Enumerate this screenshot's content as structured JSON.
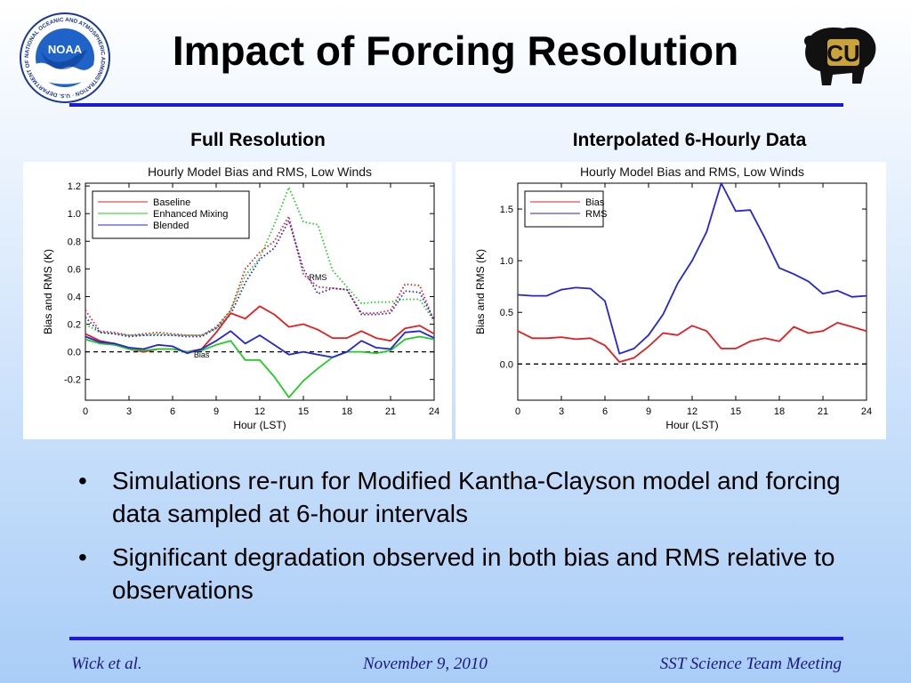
{
  "slide": {
    "title": "Impact of Forcing Resolution",
    "left_heading": "Full Resolution",
    "right_heading": "Interpolated 6-Hourly Data",
    "bullets": [
      "Simulations re-run for Modified Kantha-Clayson model and forcing data sampled at 6-hour intervals",
      "Significant degradation observed in both bias and RMS relative to observations"
    ],
    "bullet_symbol": "•",
    "footer": {
      "left": "Wick et al.",
      "center": "November 9, 2010",
      "right": "SST Science Team Meeting"
    },
    "logos": {
      "noaa": {
        "text": "NOAA",
        "ring_text": "NATIONAL OCEANIC AND ATMOSPHERIC ADMINISTRATION · U.S. DEPARTMENT OF COMMERCE ·"
      },
      "cu": {
        "icon": "cu-buffalo-logo",
        "text": "CU"
      }
    },
    "colors": {
      "rule": "#1a1ad8",
      "footer_text": "#1a1a80"
    }
  },
  "chart_data": [
    {
      "type": "line",
      "title": "Hourly Model Bias and RMS, Low Winds",
      "xlabel": "Hour (LST)",
      "ylabel": "Bias and RMS (K)",
      "xlim": [
        0,
        24
      ],
      "ylim": [
        -0.35,
        1.22
      ],
      "xticks": [
        0,
        3,
        6,
        9,
        12,
        15,
        18,
        21,
        24
      ],
      "yticks": [
        -0.2,
        0.0,
        0.2,
        0.4,
        0.6,
        0.8,
        1.0,
        1.2
      ],
      "ytick_labels": [
        "-0.2",
        "0.0",
        "0.2",
        "0.4",
        "0.6",
        "0.8",
        "1.0",
        "1.2"
      ],
      "legend": {
        "position": "top-left",
        "entries": [
          "Baseline",
          "Enhanced Mixing",
          "Blended"
        ]
      },
      "annotations": [
        {
          "text": "RMS",
          "x": 16.0,
          "y": 0.52
        },
        {
          "text": "Bias",
          "x": 8.0,
          "y": -0.04
        }
      ],
      "reference_line": {
        "y": 0.0,
        "style": "dashed"
      },
      "x": [
        0,
        1,
        2,
        3,
        4,
        5,
        6,
        7,
        8,
        9,
        10,
        11,
        12,
        13,
        14,
        15,
        16,
        17,
        18,
        19,
        20,
        21,
        22,
        23,
        24
      ],
      "series": [
        {
          "name": "Baseline",
          "metric": "RMS",
          "color": "#e02020",
          "style": "dotted",
          "values": [
            0.3,
            0.15,
            0.14,
            0.12,
            0.13,
            0.14,
            0.13,
            0.12,
            0.12,
            0.18,
            0.3,
            0.6,
            0.72,
            0.8,
            0.98,
            0.56,
            0.47,
            0.46,
            0.45,
            0.28,
            0.28,
            0.3,
            0.49,
            0.48,
            0.22
          ]
        },
        {
          "name": "Enhanced Mixing",
          "metric": "RMS",
          "color": "#22cc22",
          "style": "dotted",
          "values": [
            0.2,
            0.14,
            0.13,
            0.12,
            0.12,
            0.13,
            0.12,
            0.12,
            0.12,
            0.17,
            0.3,
            0.55,
            0.68,
            0.92,
            1.19,
            0.94,
            0.92,
            0.59,
            0.47,
            0.35,
            0.36,
            0.36,
            0.38,
            0.38,
            0.22
          ]
        },
        {
          "name": "Blended",
          "metric": "RMS",
          "color": "#2424d8",
          "style": "dotted",
          "values": [
            0.25,
            0.14,
            0.13,
            0.11,
            0.12,
            0.12,
            0.12,
            0.11,
            0.11,
            0.17,
            0.27,
            0.5,
            0.67,
            0.75,
            0.95,
            0.6,
            0.42,
            0.46,
            0.45,
            0.27,
            0.27,
            0.28,
            0.44,
            0.43,
            0.23
          ]
        },
        {
          "name": "Baseline",
          "metric": "Bias",
          "color": "#e02020",
          "style": "solid",
          "values": [
            0.13,
            0.08,
            0.06,
            0.02,
            0.0,
            0.02,
            0.02,
            0.0,
            0.02,
            0.14,
            0.28,
            0.24,
            0.33,
            0.27,
            0.18,
            0.2,
            0.16,
            0.1,
            0.1,
            0.15,
            0.1,
            0.08,
            0.17,
            0.19,
            0.13
          ]
        },
        {
          "name": "Enhanced Mixing",
          "metric": "Bias",
          "color": "#22cc22",
          "style": "solid",
          "values": [
            0.09,
            0.06,
            0.05,
            0.02,
            0.01,
            0.02,
            0.02,
            0.0,
            0.01,
            0.05,
            0.08,
            -0.06,
            -0.06,
            -0.18,
            -0.33,
            -0.21,
            -0.12,
            -0.04,
            0.0,
            0.0,
            -0.01,
            0.01,
            0.09,
            0.11,
            0.09
          ]
        },
        {
          "name": "Blended",
          "metric": "Bias",
          "color": "#2424d8",
          "style": "solid",
          "values": [
            0.11,
            0.07,
            0.06,
            0.03,
            0.02,
            0.05,
            0.04,
            -0.01,
            0.02,
            0.08,
            0.15,
            0.06,
            0.12,
            0.05,
            -0.02,
            0.0,
            -0.02,
            -0.04,
            0.0,
            0.08,
            0.03,
            0.02,
            0.14,
            0.15,
            0.1
          ]
        }
      ]
    },
    {
      "type": "line",
      "title": "Hourly Model Bias and RMS, Low Winds",
      "xlabel": "Hour (LST)",
      "ylabel": "Bias and RMS (K)",
      "xlim": [
        0,
        24
      ],
      "ylim": [
        -0.35,
        1.75
      ],
      "xticks": [
        0,
        3,
        6,
        9,
        12,
        15,
        18,
        21,
        24
      ],
      "yticks": [
        0.0,
        0.5,
        1.0,
        1.5
      ],
      "ytick_labels": [
        "0.0",
        "0.5",
        "1.0",
        "1.5"
      ],
      "legend": {
        "position": "top-left",
        "entries": [
          "Bias",
          "RMS"
        ]
      },
      "reference_line": {
        "y": 0.0,
        "style": "dashed"
      },
      "x": [
        0,
        1,
        2,
        3,
        4,
        5,
        6,
        7,
        8,
        9,
        10,
        11,
        12,
        13,
        14,
        15,
        16,
        17,
        18,
        19,
        20,
        21,
        22,
        23,
        24
      ],
      "series": [
        {
          "name": "Bias",
          "color": "#e02020",
          "style": "solid",
          "values": [
            0.32,
            0.25,
            0.25,
            0.26,
            0.24,
            0.25,
            0.18,
            0.02,
            0.06,
            0.17,
            0.3,
            0.28,
            0.37,
            0.32,
            0.15,
            0.15,
            0.22,
            0.25,
            0.22,
            0.36,
            0.3,
            0.32,
            0.4,
            0.36,
            0.32
          ]
        },
        {
          "name": "RMS",
          "color": "#2424d8",
          "style": "solid",
          "values": [
            0.67,
            0.66,
            0.66,
            0.72,
            0.74,
            0.73,
            0.61,
            0.1,
            0.15,
            0.28,
            0.48,
            0.78,
            1.0,
            1.28,
            1.75,
            1.48,
            1.49,
            1.22,
            0.93,
            0.87,
            0.8,
            0.68,
            0.71,
            0.65,
            0.66
          ]
        }
      ]
    }
  ]
}
